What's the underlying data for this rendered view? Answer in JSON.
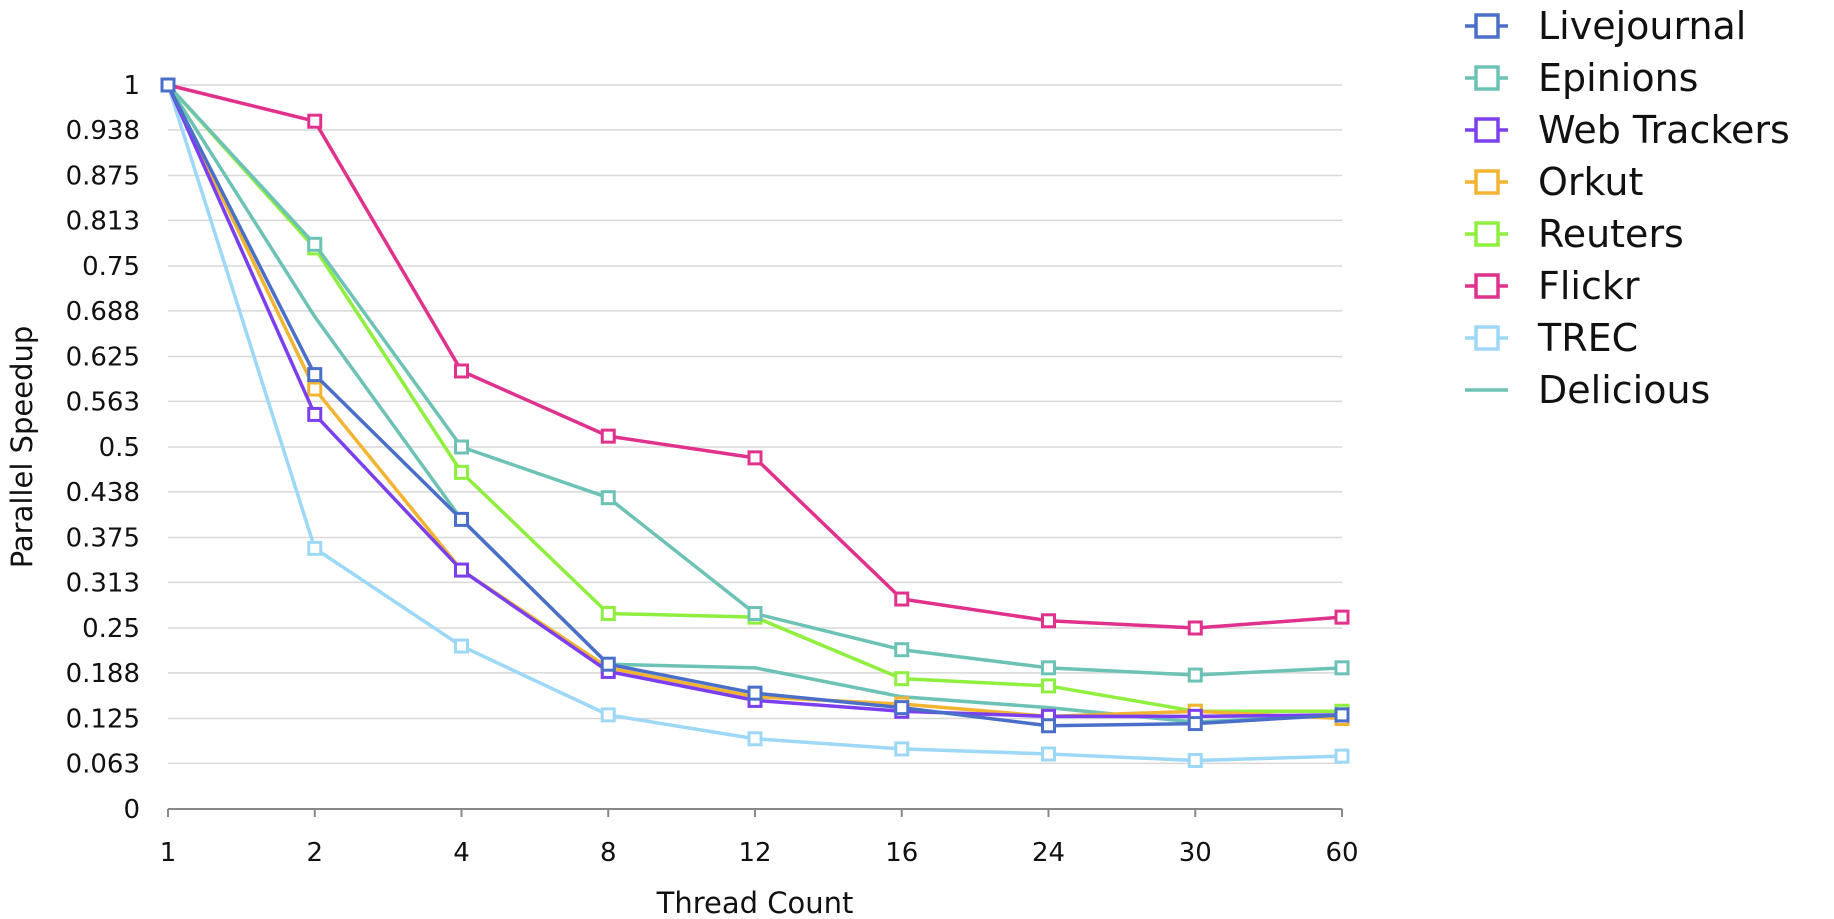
{
  "chart_data": {
    "type": "line",
    "xlabel": "Thread Count",
    "ylabel": "Parallel Speedup",
    "x": [
      "1",
      "2",
      "4",
      "8",
      "12",
      "16",
      "24",
      "30",
      "60"
    ],
    "yticks": [
      "0",
      "0.063",
      "0.125",
      "0.188",
      "0.25",
      "0.313",
      "0.375",
      "0.438",
      "0.5",
      "0.563",
      "0.625",
      "0.688",
      "0.75",
      "0.813",
      "0.875",
      "0.938",
      "1"
    ],
    "ylim": [
      0,
      1
    ],
    "grid": true,
    "legend_position": "right",
    "series": [
      {
        "name": "Livejournal",
        "color": "#4a6fc9",
        "marker": "square",
        "values": [
          1,
          0.6,
          0.4,
          0.2,
          0.16,
          0.14,
          0.115,
          0.118,
          0.13
        ]
      },
      {
        "name": "Epinions",
        "color": "#6dc2b6",
        "marker": "square",
        "values": [
          1,
          0.78,
          0.5,
          0.43,
          0.27,
          0.22,
          0.195,
          0.185,
          0.195
        ]
      },
      {
        "name": "Web Trackers",
        "color": "#7b3ff0",
        "marker": "square",
        "values": [
          1,
          0.545,
          0.33,
          0.19,
          0.15,
          0.135,
          0.128,
          0.128,
          0.13
        ]
      },
      {
        "name": "Orkut",
        "color": "#f2b431",
        "marker": "square",
        "values": [
          1,
          0.58,
          0.33,
          0.195,
          0.155,
          0.145,
          0.128,
          0.135,
          0.125
        ]
      },
      {
        "name": "Reuters",
        "color": "#8fef3e",
        "marker": "square",
        "values": [
          1,
          0.775,
          0.465,
          0.27,
          0.265,
          0.18,
          0.17,
          0.135,
          0.135
        ]
      },
      {
        "name": "Flickr",
        "color": "#e0318c",
        "marker": "square",
        "values": [
          1,
          0.95,
          0.605,
          0.515,
          0.485,
          0.29,
          0.26,
          0.25,
          0.265
        ]
      },
      {
        "name": "TREC",
        "color": "#9dd8f6",
        "marker": "square",
        "values": [
          1,
          0.36,
          0.225,
          0.13,
          0.097,
          0.083,
          0.076,
          0.067,
          0.073
        ]
      },
      {
        "name": "Delicious",
        "color": "#6dc2b6",
        "marker": "none",
        "values": [
          1,
          0.68,
          0.4,
          0.2,
          0.195,
          0.155,
          0.14,
          0.12,
          0.13
        ]
      }
    ]
  }
}
